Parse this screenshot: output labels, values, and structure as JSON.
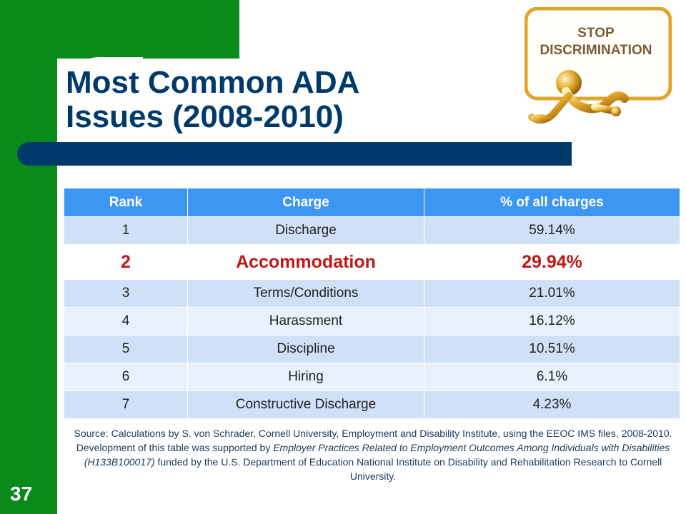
{
  "slide": {
    "title_line1": "Most Common ADA",
    "title_line2": "Issues (2008-2010)",
    "number": "37"
  },
  "logo": {
    "line1": "STOP",
    "line2": "DISCRIMINATION"
  },
  "table": {
    "headers": [
      "Rank",
      "Charge",
      "% of all charges"
    ],
    "rows": [
      {
        "rank": "1",
        "charge": "Discharge",
        "pct": "59.14%"
      },
      {
        "rank": "2",
        "charge": "Accommodation",
        "pct": "29.94%"
      },
      {
        "rank": "3",
        "charge": "Terms/Conditions",
        "pct": "21.01%"
      },
      {
        "rank": "4",
        "charge": "Harassment",
        "pct": "16.12%"
      },
      {
        "rank": "5",
        "charge": "Discipline",
        "pct": "10.51%"
      },
      {
        "rank": "6",
        "charge": "Hiring",
        "pct": "6.1%"
      },
      {
        "rank": "7",
        "charge": "Constructive Discharge",
        "pct": "4.23%"
      }
    ],
    "highlight_color": "#c01818",
    "header_color": "#3c96f2"
  },
  "source": {
    "part1": "Source: Calculations by S. von Schrader, Cornell University, Employment and Disability Institute, using the EEOC IMS files, 2008-2010. Development of this table was supported by ",
    "italic": "Employer Practices Related to Employment Outcomes Among Individuals with Disabilities (H133B100017)",
    "part2": " funded by the U.S. Department of Education National Institute on Disability and Rehabilitation Research to Cornell University."
  },
  "theme": {
    "green": "#0a8a1a",
    "navy": "#003a6b"
  }
}
